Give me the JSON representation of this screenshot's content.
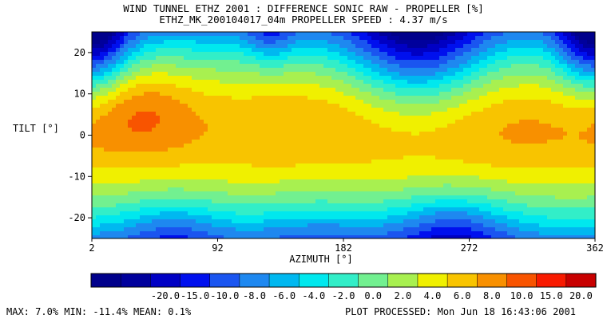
{
  "title_line1": "WIND TUNNEL ETHZ 2001 : DIFFERENCE SONIC RAW - PROPELLER  [%]",
  "title_line2": "ETHZ_MK_200104017_04m PROPELLER SPEED :  4.37 m/s",
  "footer": {
    "stats": "MAX:   7.0% MIN: -11.4% MEAN:   0.1%",
    "processed": "PLOT PROCESSED: Mon Jun 18 16:43:06 2001"
  },
  "chart_data": {
    "type": "heatmap",
    "subtype": "filled-contour",
    "xlabel": "AZIMUTH [°]",
    "ylabel": "TILT [°]",
    "xlim": [
      2,
      362
    ],
    "ylim": [
      -25,
      25
    ],
    "x_ticks": [
      2,
      92,
      182,
      272,
      362
    ],
    "y_ticks": [
      20,
      10,
      0,
      -10,
      -20
    ],
    "colorbar": {
      "levels": [
        -24.0,
        -22.0,
        -20.0,
        -17.5,
        -15.0,
        -12.5,
        -10.0,
        -8.0,
        -6.0,
        -4.0,
        -2.0,
        0.0,
        2.0,
        4.0,
        6.0,
        8.0,
        10.0,
        15.0,
        20.0
      ],
      "tick_labels": [
        "-20.0",
        "-15.0",
        "-10.0",
        "-8.0",
        "-6.0",
        "-4.0",
        "-2.0",
        "0.0",
        "2.0",
        "4.0",
        "6.0",
        "8.0",
        "10.0",
        "15.0",
        "20.0"
      ],
      "colors": [
        "#00008b",
        "#00009c",
        "#0000c4",
        "#0010ee",
        "#1a55f0",
        "#1e88f0",
        "#00b8f0",
        "#00e8ee",
        "#32eec8",
        "#72f090",
        "#a8f050",
        "#f0f000",
        "#f8c400",
        "#f89000",
        "#f85400",
        "#f81a00",
        "#c80000"
      ]
    },
    "field": {
      "note": "approximate reconstruction of the filled contour field",
      "min": -11.4,
      "max": 7.0,
      "mean": 0.1
    }
  }
}
